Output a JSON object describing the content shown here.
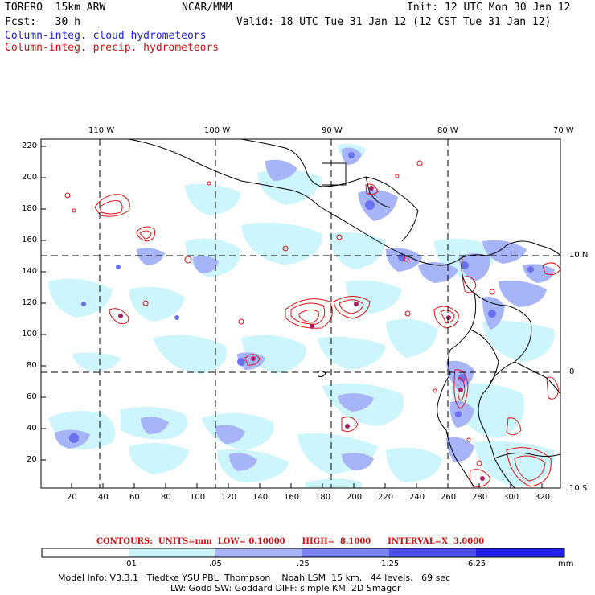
{
  "header": {
    "model_line": "TORERO  15km ARW",
    "center": "NCAR/MMM",
    "init": "Init: 12 UTC Mon 30 Jan 12",
    "fcst": "Fcst:   30 h",
    "valid": "Valid: 18 UTC Tue 31 Jan 12 (12 CST Tue 31 Jan 12)",
    "field_cloud": "Column-integ. cloud hydrometeors",
    "field_precip": "Column-integ. precip. hydrometeors"
  },
  "map": {
    "top_lon_labels": [
      "110 W",
      "100 W",
      "90 W",
      "80 W",
      "70 W"
    ],
    "right_lat_labels": [
      "10 N",
      "0",
      "10 S"
    ],
    "left_ticks": [
      "220",
      "200",
      "180",
      "160",
      "140",
      "120",
      "100",
      "80",
      "60",
      "40",
      "20"
    ],
    "bottom_ticks": [
      "20",
      "40",
      "60",
      "80",
      "100",
      "120",
      "140",
      "160",
      "180",
      "200",
      "220",
      "240",
      "260",
      "280",
      "300",
      "320"
    ]
  },
  "legend": {
    "contours_text": "CONTOURS:  UNITS=mm  LOW= 0.10000      HIGH=  8.1000      INTERVAL=X  3.0000",
    "levels": [
      ".01",
      ".05",
      ".25",
      "1.25",
      "6.25"
    ],
    "units": "mm",
    "colors": [
      "#ffffff",
      "#ccf6fc",
      "#a8b4f8",
      "#7c84f4",
      "#5050f0",
      "#2020e8"
    ]
  },
  "footer": {
    "line1": "Model Info: V3.3.1   Tiedtke YSU PBL  Thompson    Noah LSM  15 km,   44 levels,   69 sec",
    "line2": "LW: Godd SW: Goddard DIFF: simple KM: 2D Smagor"
  },
  "colors": {
    "cloud_contour": "#2222cc",
    "precip_contour": "#dd1111",
    "map_line": "#000000"
  }
}
